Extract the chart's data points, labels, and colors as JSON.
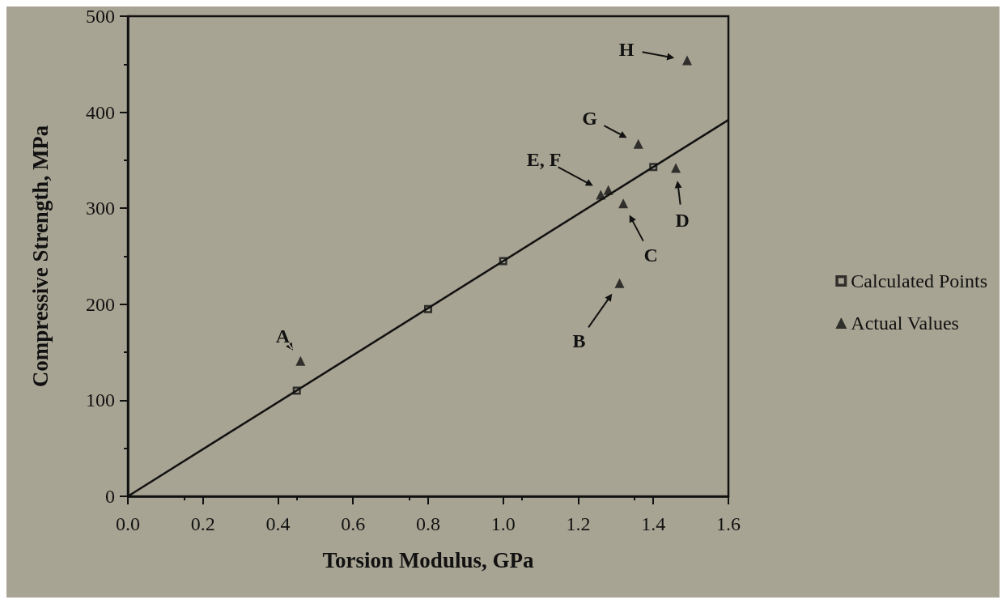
{
  "chart_data": {
    "type": "scatter",
    "xlabel": "Torsion Modulus, GPa",
    "ylabel": "Compressive Strength, MPa",
    "xlim": [
      0,
      1.6
    ],
    "xticks": [
      {
        "value": 0,
        "label": "0.0"
      },
      0.2,
      0.4,
      0.6,
      0.8,
      {
        "value": 1,
        "label": "1.0"
      },
      1.2,
      1.4,
      1.6
    ],
    "ylim": [
      0,
      500
    ],
    "yticks": [
      0,
      100,
      200,
      300,
      400,
      500
    ],
    "grid": false,
    "legend": "right",
    "series": [
      {
        "name": "Calculated Points",
        "marker": "square",
        "color": "#111111",
        "x": [
          0.45,
          0.8,
          1.0,
          1.4
        ],
        "values": [
          110,
          195,
          245,
          343
        ]
      },
      {
        "name": "Actual Values",
        "marker": "triangle",
        "color": "#111111",
        "x": [
          0.46,
          1.31,
          1.32,
          1.46,
          1.26,
          1.28,
          1.36,
          1.49
        ],
        "values": [
          141,
          222,
          305,
          342,
          314,
          319,
          367,
          454
        ]
      },
      {
        "type": "line",
        "marker": "none",
        "color": "#111111",
        "x": [
          0,
          1.6
        ],
        "values": [
          0,
          392
        ]
      }
    ],
    "annotations": [
      {
        "text": "A",
        "x": 0.46,
        "y": 141
      },
      {
        "text": "B",
        "x": 1.31,
        "y": 222
      },
      {
        "text": "C",
        "x": 1.32,
        "y": 305
      },
      {
        "text": "D",
        "x": 1.46,
        "y": 342
      },
      {
        "text": "E, F",
        "x": 1.27,
        "y": 317
      },
      {
        "text": "G",
        "x": 1.36,
        "y": 367
      },
      {
        "text": "H",
        "x": 1.49,
        "y": 454
      }
    ]
  }
}
